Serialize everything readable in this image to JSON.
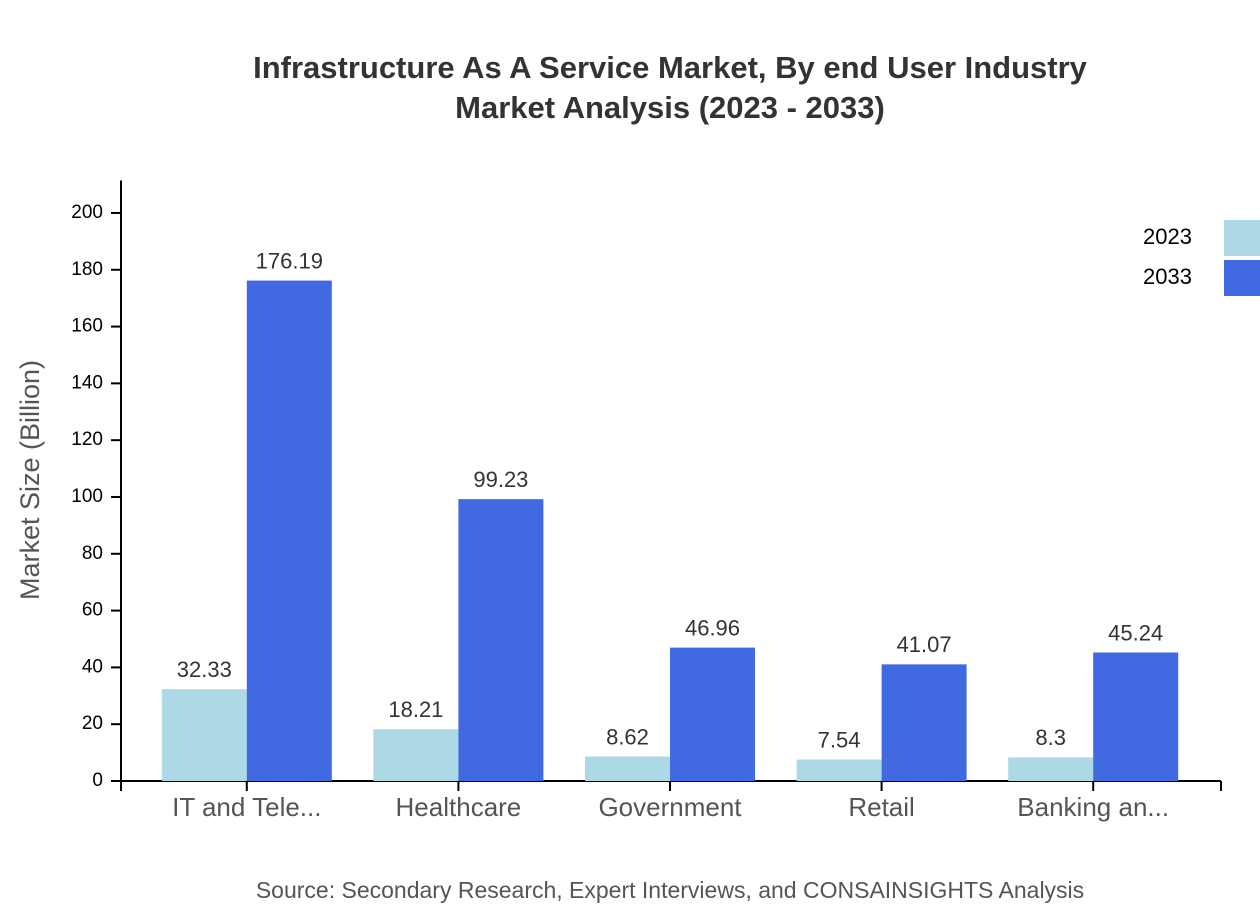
{
  "chart_data": {
    "type": "bar",
    "title": "Infrastructure As A Service Market, By end User Industry",
    "subtitle": "Market Analysis (2023 - 2033)",
    "y_label": "Market Size (Billion)",
    "source": "Source: Secondary Research, Expert Interviews, and CONSAINSIGHTS Analysis",
    "categories": [
      "IT and Tele...",
      "Healthcare",
      "Government",
      "Retail",
      "Banking an..."
    ],
    "series": [
      {
        "name": "2023",
        "color": "#add8e6",
        "values": [
          32.33,
          18.21,
          8.62,
          7.54,
          8.3
        ]
      },
      {
        "name": "2033",
        "color": "#4169e1",
        "values": [
          176.19,
          99.23,
          46.96,
          41.07,
          45.24
        ]
      }
    ],
    "ylim": [
      0,
      211.43
    ],
    "yticks": [
      0,
      20,
      40,
      60,
      80,
      100,
      120,
      140,
      160,
      180,
      200
    ],
    "legend": "top-right"
  }
}
